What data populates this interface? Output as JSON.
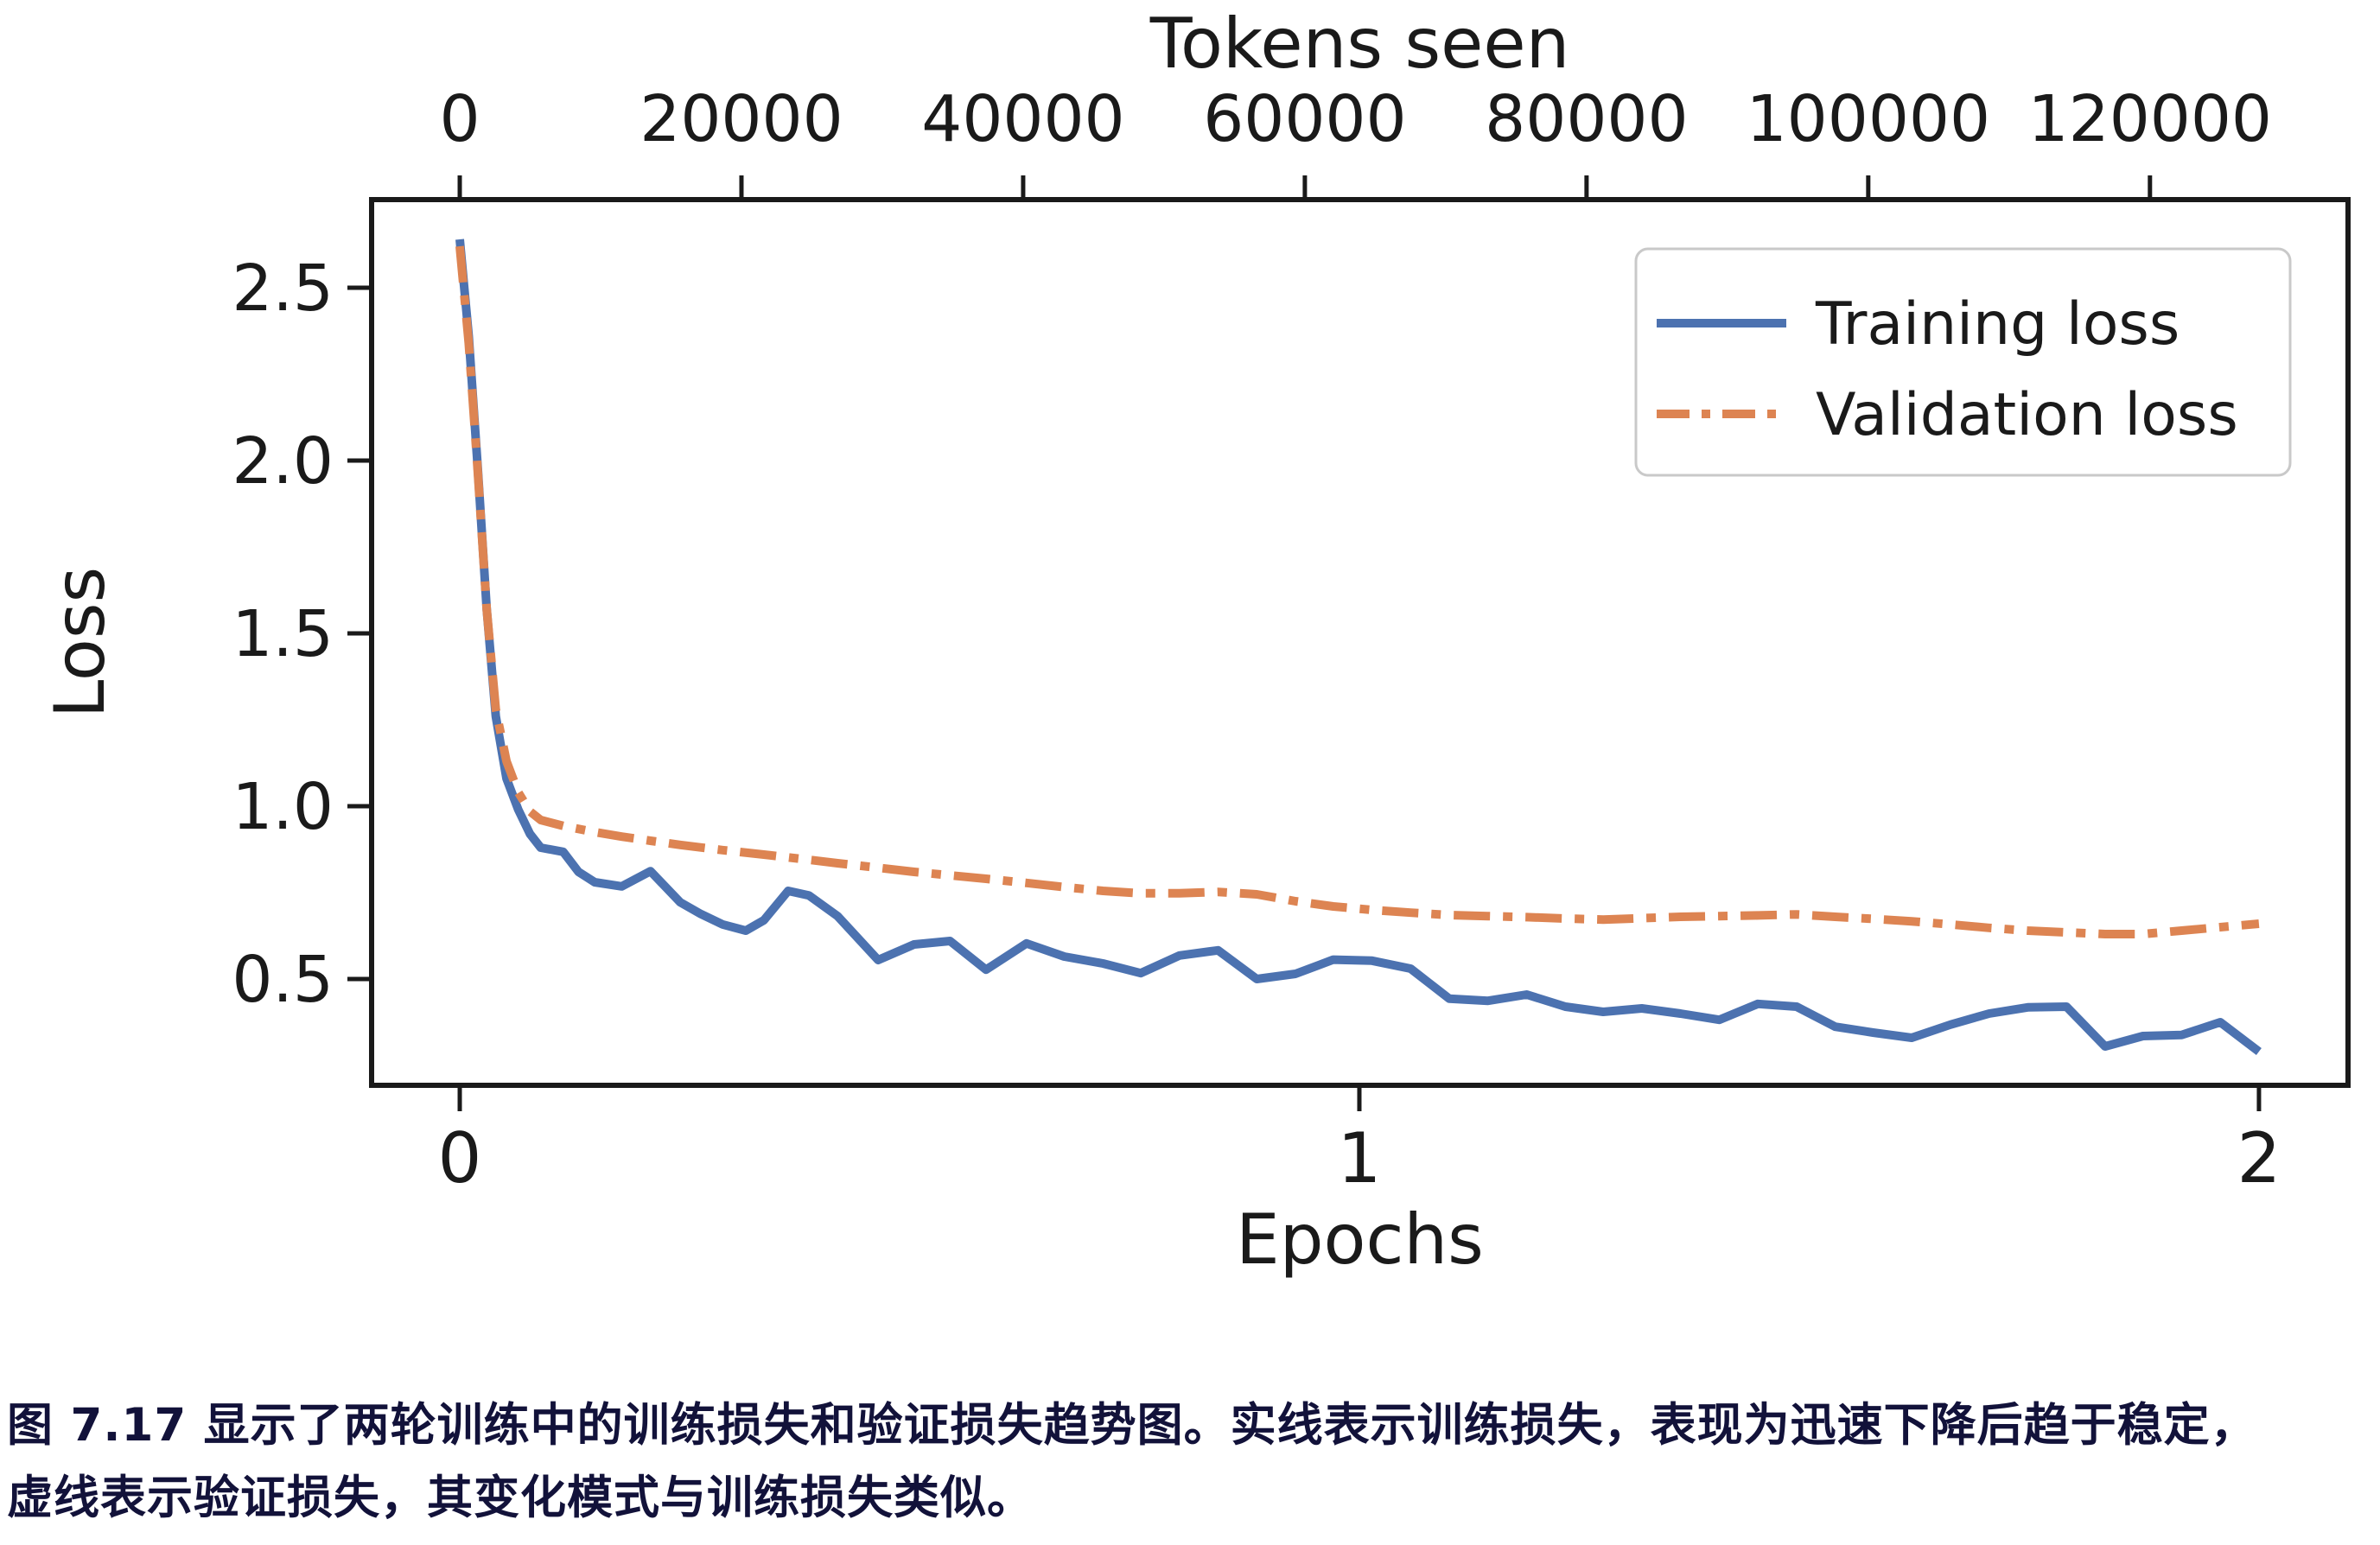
{
  "figure": {
    "axes": {
      "top": {
        "title": "Tokens seen",
        "tick_labels": [
          "0",
          "20000",
          "40000",
          "60000",
          "80000",
          "100000",
          "120000"
        ]
      },
      "bottom": {
        "title": "Epochs",
        "tick_labels": [
          "0",
          "1",
          "2"
        ]
      },
      "left": {
        "title": "Loss",
        "tick_labels": [
          "0.5",
          "1.0",
          "1.5",
          "2.0",
          "2.5"
        ]
      }
    },
    "legend": {
      "entries": [
        {
          "label": "Training loss",
          "color": "#4C72B0",
          "style": "solid"
        },
        {
          "label": "Validation loss",
          "color": "#DD8452",
          "style": "dash-dot"
        }
      ]
    },
    "colors": {
      "training": "#4C72B0",
      "validation": "#DD8452",
      "axis": "#1a1a1a",
      "legend_border": "#c9c9c9",
      "caption_text": "#12123a"
    }
  },
  "chart_data": {
    "type": "line",
    "title": "",
    "xlabel": "Epochs",
    "ylabel": "Loss",
    "x2label": "Tokens seen",
    "xlim": [
      -0.098,
      2.099
    ],
    "ylim": [
      0.1925,
      2.755
    ],
    "x_ticks": [
      0,
      1,
      2
    ],
    "y_ticks": [
      0.5,
      1.0,
      1.5,
      2.0,
      2.5
    ],
    "x2_ticks_tokens": [
      0,
      20000,
      40000,
      60000,
      80000,
      100000,
      120000
    ],
    "tokens_per_epoch": 63870,
    "grid": false,
    "legend_position": "upper right",
    "series": [
      {
        "name": "Training loss",
        "color": "#4C72B0",
        "style": "solid",
        "points": [
          [
            0.0,
            2.64
          ],
          [
            0.01,
            2.36
          ],
          [
            0.02,
            1.98
          ],
          [
            0.03,
            1.57
          ],
          [
            0.04,
            1.26
          ],
          [
            0.052,
            1.08
          ],
          [
            0.065,
            0.99
          ],
          [
            0.078,
            0.92
          ],
          [
            0.09,
            0.88
          ],
          [
            0.115,
            0.868
          ],
          [
            0.132,
            0.81
          ],
          [
            0.15,
            0.78
          ],
          [
            0.18,
            0.768
          ],
          [
            0.212,
            0.812
          ],
          [
            0.245,
            0.722
          ],
          [
            0.268,
            0.688
          ],
          [
            0.292,
            0.658
          ],
          [
            0.318,
            0.64
          ],
          [
            0.338,
            0.67
          ],
          [
            0.365,
            0.755
          ],
          [
            0.388,
            0.742
          ],
          [
            0.42,
            0.682
          ],
          [
            0.465,
            0.555
          ],
          [
            0.505,
            0.6
          ],
          [
            0.545,
            0.61
          ],
          [
            0.585,
            0.527
          ],
          [
            0.63,
            0.603
          ],
          [
            0.672,
            0.565
          ],
          [
            0.715,
            0.545
          ],
          [
            0.757,
            0.517
          ],
          [
            0.8,
            0.568
          ],
          [
            0.843,
            0.583
          ],
          [
            0.886,
            0.5
          ],
          [
            0.929,
            0.515
          ],
          [
            0.971,
            0.556
          ],
          [
            1.014,
            0.553
          ],
          [
            1.057,
            0.53
          ],
          [
            1.1,
            0.443
          ],
          [
            1.143,
            0.437
          ],
          [
            1.186,
            0.455
          ],
          [
            1.229,
            0.42
          ],
          [
            1.271,
            0.405
          ],
          [
            1.314,
            0.415
          ],
          [
            1.357,
            0.4
          ],
          [
            1.4,
            0.382
          ],
          [
            1.443,
            0.428
          ],
          [
            1.486,
            0.42
          ],
          [
            1.529,
            0.362
          ],
          [
            1.571,
            0.345
          ],
          [
            1.614,
            0.33
          ],
          [
            1.657,
            0.368
          ],
          [
            1.7,
            0.4
          ],
          [
            1.743,
            0.418
          ],
          [
            1.786,
            0.42
          ],
          [
            1.829,
            0.305
          ],
          [
            1.871,
            0.335
          ],
          [
            1.914,
            0.338
          ],
          [
            1.957,
            0.375
          ],
          [
            2.0,
            0.29
          ]
        ]
      },
      {
        "name": "Validation loss",
        "color": "#DD8452",
        "style": "dash-dot",
        "points": [
          [
            0.0,
            2.62
          ],
          [
            0.01,
            2.34
          ],
          [
            0.02,
            1.97
          ],
          [
            0.03,
            1.57
          ],
          [
            0.04,
            1.28
          ],
          [
            0.052,
            1.13
          ],
          [
            0.065,
            1.04
          ],
          [
            0.078,
            0.985
          ],
          [
            0.09,
            0.96
          ],
          [
            0.115,
            0.943
          ],
          [
            0.15,
            0.925
          ],
          [
            0.18,
            0.912
          ],
          [
            0.212,
            0.9
          ],
          [
            0.245,
            0.888
          ],
          [
            0.292,
            0.873
          ],
          [
            0.338,
            0.86
          ],
          [
            0.388,
            0.845
          ],
          [
            0.42,
            0.835
          ],
          [
            0.465,
            0.822
          ],
          [
            0.505,
            0.81
          ],
          [
            0.545,
            0.8
          ],
          [
            0.585,
            0.79
          ],
          [
            0.63,
            0.778
          ],
          [
            0.672,
            0.766
          ],
          [
            0.715,
            0.755
          ],
          [
            0.757,
            0.748
          ],
          [
            0.8,
            0.748
          ],
          [
            0.843,
            0.752
          ],
          [
            0.886,
            0.745
          ],
          [
            0.929,
            0.725
          ],
          [
            0.971,
            0.71
          ],
          [
            1.014,
            0.7
          ],
          [
            1.057,
            0.692
          ],
          [
            1.1,
            0.685
          ],
          [
            1.143,
            0.682
          ],
          [
            1.186,
            0.679
          ],
          [
            1.229,
            0.675
          ],
          [
            1.271,
            0.672
          ],
          [
            1.314,
            0.676
          ],
          [
            1.357,
            0.68
          ],
          [
            1.4,
            0.682
          ],
          [
            1.443,
            0.684
          ],
          [
            1.486,
            0.687
          ],
          [
            1.529,
            0.68
          ],
          [
            1.571,
            0.674
          ],
          [
            1.614,
            0.667
          ],
          [
            1.657,
            0.658
          ],
          [
            1.7,
            0.648
          ],
          [
            1.743,
            0.64
          ],
          [
            1.786,
            0.635
          ],
          [
            1.829,
            0.63
          ],
          [
            1.871,
            0.63
          ],
          [
            1.914,
            0.64
          ],
          [
            1.957,
            0.65
          ],
          [
            2.0,
            0.66
          ]
        ]
      }
    ]
  },
  "caption": {
    "line1": "图 7.17 显示了两轮训练中的训练损失和验证损失趋势图。实线表示训练损失，表现为迅速下降后趋于稳定，",
    "line2": "虚线表示验证损失，其变化模式与训练损失类似。"
  }
}
